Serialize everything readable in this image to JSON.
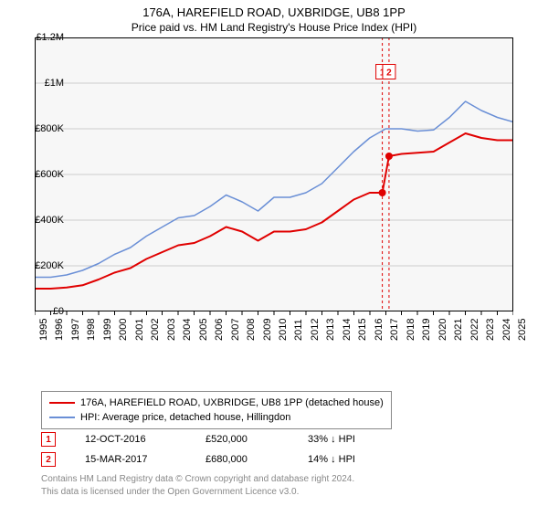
{
  "title1": "176A, HAREFIELD ROAD, UXBRIDGE, UB8 1PP",
  "title2": "Price paid vs. HM Land Registry's House Price Index (HPI)",
  "chart": {
    "type": "line",
    "background_color": "#f7f7f7",
    "grid_color": "#cccccc",
    "border_color": "#000000",
    "ylim": [
      0,
      1200000
    ],
    "ytick_step": 200000,
    "ylabels": [
      "£0",
      "£200K",
      "£400K",
      "£600K",
      "£800K",
      "£1M",
      "£1.2M"
    ],
    "xyears": [
      1995,
      1996,
      1997,
      1998,
      1999,
      2000,
      2001,
      2002,
      2003,
      2004,
      2005,
      2006,
      2007,
      2008,
      2009,
      2010,
      2011,
      2012,
      2013,
      2014,
      2015,
      2016,
      2017,
      2018,
      2019,
      2020,
      2021,
      2022,
      2023,
      2024,
      2025
    ],
    "series": [
      {
        "name": "price_paid",
        "color": "#e00000",
        "line_width": 2,
        "data": [
          [
            1995,
            100000
          ],
          [
            1996,
            100000
          ],
          [
            1997,
            105000
          ],
          [
            1998,
            115000
          ],
          [
            1999,
            140000
          ],
          [
            2000,
            170000
          ],
          [
            2001,
            190000
          ],
          [
            2002,
            230000
          ],
          [
            2003,
            260000
          ],
          [
            2004,
            290000
          ],
          [
            2005,
            300000
          ],
          [
            2006,
            330000
          ],
          [
            2007,
            370000
          ],
          [
            2008,
            350000
          ],
          [
            2009,
            310000
          ],
          [
            2010,
            350000
          ],
          [
            2011,
            350000
          ],
          [
            2012,
            360000
          ],
          [
            2013,
            390000
          ],
          [
            2014,
            440000
          ],
          [
            2015,
            490000
          ],
          [
            2016,
            520000
          ],
          [
            2016.79,
            520000
          ],
          [
            2017.21,
            680000
          ],
          [
            2018,
            690000
          ],
          [
            2019,
            695000
          ],
          [
            2020,
            700000
          ],
          [
            2021,
            740000
          ],
          [
            2022,
            780000
          ],
          [
            2023,
            760000
          ],
          [
            2024,
            750000
          ],
          [
            2025,
            750000
          ]
        ]
      },
      {
        "name": "hpi",
        "color": "#6a8fd6",
        "line_width": 1.5,
        "data": [
          [
            1995,
            150000
          ],
          [
            1996,
            150000
          ],
          [
            1997,
            160000
          ],
          [
            1998,
            180000
          ],
          [
            1999,
            210000
          ],
          [
            2000,
            250000
          ],
          [
            2001,
            280000
          ],
          [
            2002,
            330000
          ],
          [
            2003,
            370000
          ],
          [
            2004,
            410000
          ],
          [
            2005,
            420000
          ],
          [
            2006,
            460000
          ],
          [
            2007,
            510000
          ],
          [
            2008,
            480000
          ],
          [
            2009,
            440000
          ],
          [
            2010,
            500000
          ],
          [
            2011,
            500000
          ],
          [
            2012,
            520000
          ],
          [
            2013,
            560000
          ],
          [
            2014,
            630000
          ],
          [
            2015,
            700000
          ],
          [
            2016,
            760000
          ],
          [
            2017,
            800000
          ],
          [
            2018,
            800000
          ],
          [
            2019,
            790000
          ],
          [
            2020,
            795000
          ],
          [
            2021,
            850000
          ],
          [
            2022,
            920000
          ],
          [
            2023,
            880000
          ],
          [
            2024,
            850000
          ],
          [
            2025,
            830000
          ]
        ]
      }
    ],
    "markers": [
      {
        "label": "1",
        "x": 2016.79,
        "y": 520000,
        "box_y": 1050000
      },
      {
        "label": "2",
        "x": 2017.21,
        "y": 680000,
        "box_y": 1050000
      }
    ],
    "marker_line_color": "#e00000",
    "marker_line_dash": "3,3",
    "marker_dot_color": "#e00000",
    "marker_dot_radius": 4
  },
  "legend": {
    "items": [
      {
        "color": "#e00000",
        "label": "176A, HAREFIELD ROAD, UXBRIDGE, UB8 1PP (detached house)",
        "line_width": 2
      },
      {
        "color": "#6a8fd6",
        "label": "HPI: Average price, detached house, Hillingdon",
        "line_width": 1.5
      }
    ]
  },
  "data_rows": {
    "arrow": "↓",
    "rows": [
      {
        "marker": "1",
        "date": "12-OCT-2016",
        "price": "£520,000",
        "pct": "33%",
        "hpi_label": "HPI"
      },
      {
        "marker": "2",
        "date": "15-MAR-2017",
        "price": "£680,000",
        "pct": "14%",
        "hpi_label": "HPI"
      }
    ]
  },
  "footer": {
    "line1": "Contains HM Land Registry data © Crown copyright and database right 2024.",
    "line2": "This data is licensed under the Open Government Licence v3.0."
  }
}
